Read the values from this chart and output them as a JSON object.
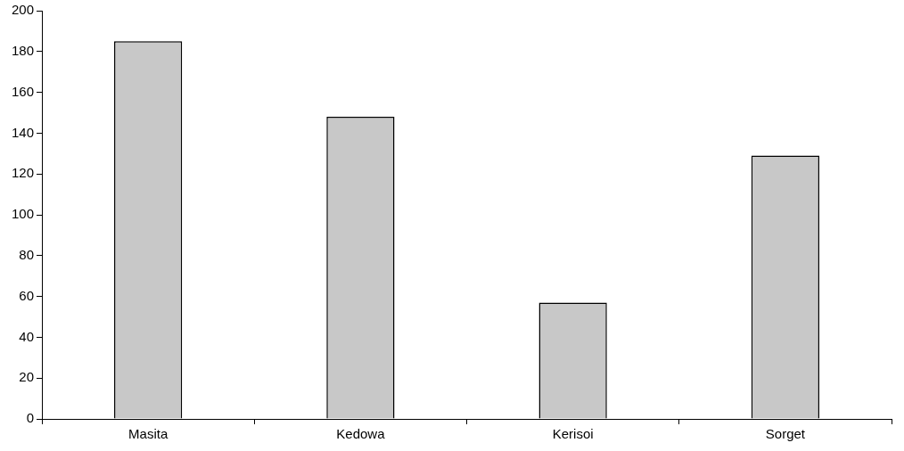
{
  "chart_data": {
    "type": "bar",
    "categories": [
      "Masita",
      "Kedowa",
      "Kerisoi",
      "Sorget"
    ],
    "values": [
      185,
      148,
      57,
      129
    ],
    "color": "#c8c8c8",
    "ylim": [
      0,
      200
    ],
    "yticks": [
      0,
      20,
      40,
      60,
      80,
      100,
      120,
      140,
      160,
      180,
      200
    ],
    "grid": false,
    "legend": false
  }
}
